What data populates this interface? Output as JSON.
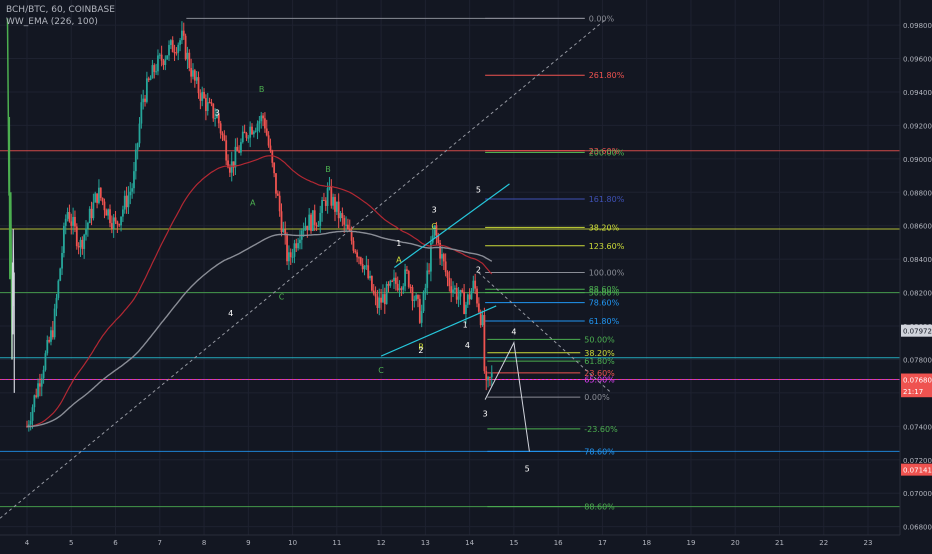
{
  "header": {
    "symbol": "BCH/BTC, 60, COINBASE",
    "indicator": "WW_EMA (226, 100)"
  },
  "colors": {
    "background": "#131722",
    "grid": "#1e2230",
    "bull": "#26a69a",
    "bear": "#ef5350",
    "ema_fast": "#b22833",
    "ema_slow": "#8a8d96",
    "wave_green": "#4caf50",
    "wave_white": "#d1d4dc",
    "channel": "#26c6da",
    "text_dim": "#b2b5be"
  },
  "chart_data": {
    "type": "candlestick",
    "title": "BCH/BTC, 60, COINBASE",
    "x_tick_labels": [
      "4",
      "5",
      "6",
      "7",
      "8",
      "9",
      "10",
      "11",
      "12",
      "13",
      "14",
      "15",
      "16",
      "17",
      "18",
      "19",
      "20",
      "21",
      "22",
      "23"
    ],
    "y_tick_labels": [
      "0.06800",
      "0.07000",
      "0.07200",
      "0.07400",
      "0.07600",
      "0.07800",
      "0.08000",
      "0.08200",
      "0.08400",
      "0.08600",
      "0.08800",
      "0.09000",
      "0.09200",
      "0.09400",
      "0.09600",
      "0.09800"
    ],
    "ylim": [
      0.0675,
      0.0995
    ],
    "price_scale": "right",
    "price_markers": [
      {
        "label": "0.07972",
        "value": 0.07972,
        "color": "#d1d4dc"
      },
      {
        "label": "0.07680",
        "value": 0.0768,
        "color": "#ef5350"
      },
      {
        "label": "21:17",
        "value": 0.0761,
        "color": "#ef5350"
      },
      {
        "label": "0.07141",
        "value": 0.07141,
        "color": "#ef5350"
      }
    ],
    "horizontal_lines": [
      {
        "value": 0.09048,
        "color": "#ef5350"
      },
      {
        "value": 0.0858,
        "color": "#cddc39"
      },
      {
        "value": 0.082,
        "color": "#4caf50"
      },
      {
        "value": 0.0781,
        "color": "#26c6da"
      },
      {
        "value": 0.0768,
        "color": "#e040fb"
      },
      {
        "value": 0.0725,
        "color": "#2196f3"
      },
      {
        "value": 0.0692,
        "color": "#4caf50"
      }
    ],
    "fib_levels_upper": [
      {
        "label": "0.00%",
        "value": 0.0984,
        "color": "#8a8d96"
      },
      {
        "label": "261.80%",
        "value": 0.095,
        "color": "#ef5350"
      },
      {
        "label": "23.60%",
        "value": 0.09048,
        "color": "#ef5350"
      },
      {
        "label": "200.00%",
        "value": 0.09038,
        "color": "#4caf50"
      },
      {
        "label": "161.80%",
        "value": 0.0876,
        "color": "#3f51b5"
      },
      {
        "label": "38.20%",
        "value": 0.0859,
        "color": "#cddc39"
      },
      {
        "label": "123.60%",
        "value": 0.0848,
        "color": "#cddc39"
      },
      {
        "label": "100.00%",
        "value": 0.0832,
        "color": "#8a8d96"
      },
      {
        "label": "88.60%",
        "value": 0.0822,
        "color": "#4caf50"
      },
      {
        "label": "50.00%",
        "value": 0.082,
        "color": "#4caf50"
      },
      {
        "label": "78.60%",
        "value": 0.0814,
        "color": "#2196f3"
      },
      {
        "label": "61.80%",
        "value": 0.0803,
        "color": "#2196f3"
      }
    ],
    "fib_levels_lower": [
      {
        "label": "50.00%",
        "value": 0.0792,
        "color": "#4caf50"
      },
      {
        "label": "61.80%",
        "value": 0.0779,
        "color": "#4caf50"
      },
      {
        "label": "38.20%",
        "value": 0.0784,
        "color": "#cddc39"
      },
      {
        "label": "23.60%",
        "value": 0.0772,
        "color": "#ef5350"
      },
      {
        "label": "65.00%",
        "value": 0.0768,
        "color": "#e040fb"
      },
      {
        "label": "0.00%",
        "value": 0.07575,
        "color": "#8a8d96"
      },
      {
        "label": "-23.60%",
        "value": 0.07385,
        "color": "#4caf50"
      },
      {
        "label": "78.60%",
        "value": 0.0725,
        "color": "#2196f3"
      },
      {
        "label": "88.60%",
        "value": 0.0692,
        "color": "#4caf50"
      }
    ],
    "wave_labels": [
      {
        "text": "3",
        "x": 8.3,
        "y": 0.0926,
        "color": "#ffffff"
      },
      {
        "text": "4",
        "x": 8.6,
        "y": 0.0806,
        "color": "#ffffff"
      },
      {
        "text": "B",
        "x": 9.3,
        "y": 0.094,
        "color": "#4caf50"
      },
      {
        "text": "A",
        "x": 9.1,
        "y": 0.0872,
        "color": "#4caf50"
      },
      {
        "text": "C",
        "x": 9.75,
        "y": 0.0816,
        "color": "#4caf50"
      },
      {
        "text": "B",
        "x": 10.8,
        "y": 0.0892,
        "color": "#4caf50"
      },
      {
        "text": "5",
        "x": 14.2,
        "y": 0.088,
        "color": "#ffffff"
      },
      {
        "text": "3",
        "x": 13.2,
        "y": 0.0868,
        "color": "#ffffff"
      },
      {
        "text": "C",
        "x": 13.2,
        "y": 0.0858,
        "color": "#cddc39"
      },
      {
        "text": "1",
        "x": 12.4,
        "y": 0.0848,
        "color": "#ffffff"
      },
      {
        "text": "A",
        "x": 12.4,
        "y": 0.0838,
        "color": "#cddc39"
      },
      {
        "text": "2",
        "x": 14.2,
        "y": 0.0832,
        "color": "#ffffff"
      },
      {
        "text": "C",
        "x": 12.0,
        "y": 0.0772,
        "color": "#4caf50"
      },
      {
        "text": "B",
        "x": 12.9,
        "y": 0.0786,
        "color": "#cddc39"
      },
      {
        "text": "2",
        "x": 12.9,
        "y": 0.0784,
        "color": "#ffffff"
      },
      {
        "text": "1",
        "x": 13.9,
        "y": 0.0799,
        "color": "#ffffff"
      },
      {
        "text": "4",
        "x": 13.95,
        "y": 0.0787,
        "color": "#ffffff"
      },
      {
        "text": "4",
        "x": 15.0,
        "y": 0.0795,
        "color": "#ffffff"
      },
      {
        "text": "3",
        "x": 14.35,
        "y": 0.0746,
        "color": "#ffffff"
      },
      {
        "text": "5",
        "x": 15.3,
        "y": 0.0713,
        "color": "#ffffff"
      }
    ],
    "projection_path": [
      {
        "x": 14.35,
        "y": 0.0756
      },
      {
        "x": 15.0,
        "y": 0.079
      },
      {
        "x": 15.35,
        "y": 0.0725
      }
    ],
    "candles": []
  }
}
